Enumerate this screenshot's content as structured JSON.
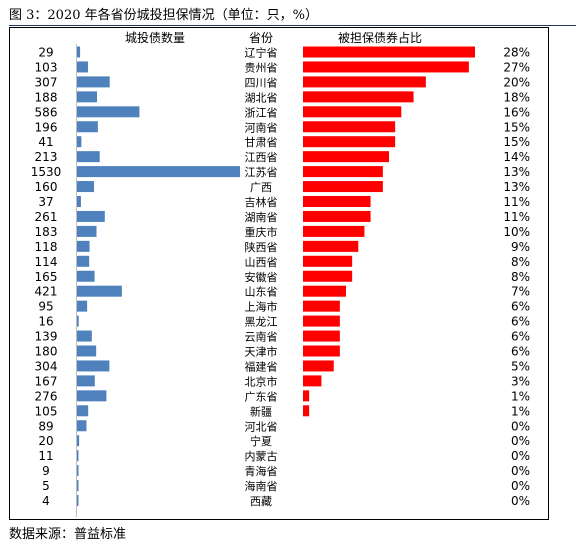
{
  "figure": {
    "title": "图 3：2020 年各省份城投担保情况（单位：只，%）",
    "source": "数据来源：普益标准"
  },
  "chart_data": [
    {
      "type": "bar",
      "orientation": "horizontal",
      "title": "城投债数量",
      "categories": [
        "辽宁省",
        "贵州省",
        "四川省",
        "湖北省",
        "浙江省",
        "河南省",
        "甘肃省",
        "江西省",
        "江苏省",
        "广西",
        "吉林省",
        "湖南省",
        "重庆市",
        "陕西省",
        "山西省",
        "安徽省",
        "山东省",
        "上海市",
        "黑龙江",
        "云南省",
        "天津市",
        "福建省",
        "北京市",
        "广东省",
        "新疆",
        "河北省",
        "宁夏",
        "内蒙古",
        "青海省",
        "海南省",
        "西藏"
      ],
      "values": [
        29,
        103,
        307,
        188,
        586,
        196,
        41,
        213,
        1530,
        160,
        37,
        261,
        183,
        118,
        114,
        165,
        421,
        95,
        16,
        139,
        180,
        304,
        167,
        276,
        105,
        89,
        20,
        11,
        9,
        5,
        4
      ],
      "color": "#4f81bd"
    },
    {
      "type": "bar",
      "orientation": "horizontal",
      "title": "被担保债券占比",
      "categories": [
        "辽宁省",
        "贵州省",
        "四川省",
        "湖北省",
        "浙江省",
        "河南省",
        "甘肃省",
        "江西省",
        "江苏省",
        "广西",
        "吉林省",
        "湖南省",
        "重庆市",
        "陕西省",
        "山西省",
        "安徽省",
        "山东省",
        "上海市",
        "黑龙江",
        "云南省",
        "天津市",
        "福建省",
        "北京市",
        "广东省",
        "新疆",
        "河北省",
        "宁夏",
        "内蒙古",
        "青海省",
        "海南省",
        "西藏"
      ],
      "values": [
        28,
        27,
        20,
        18,
        16,
        15,
        15,
        14,
        13,
        13,
        11,
        11,
        10,
        9,
        8,
        8,
        7,
        6,
        6,
        6,
        6,
        5,
        3,
        1,
        1,
        0,
        0,
        0,
        0,
        0,
        0
      ],
      "value_labels": [
        "28%",
        "27%",
        "20%",
        "18%",
        "16%",
        "15%",
        "15%",
        "14%",
        "13%",
        "13%",
        "11%",
        "11%",
        "10%",
        "9%",
        "8%",
        "8%",
        "7%",
        "6%",
        "6%",
        "6%",
        "6%",
        "5%",
        "3%",
        "1%",
        "1%",
        "0%",
        "0%",
        "0%",
        "0%",
        "0%",
        "0%"
      ],
      "color": "#ff0000"
    }
  ],
  "columns": {
    "left_header": "城投债数量",
    "middle_header": "省份",
    "right_header": "被担保债券占比"
  }
}
